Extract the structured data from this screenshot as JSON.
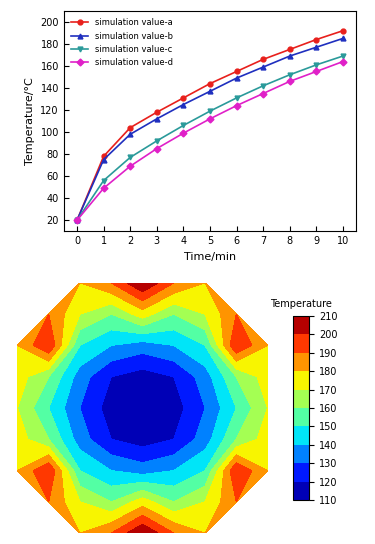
{
  "chart_data": [
    {
      "type": "line",
      "xlabel": "Time/min",
      "ylabel": "Temperature/°C",
      "x": [
        0,
        1,
        2,
        3,
        4,
        5,
        6,
        7,
        8,
        9,
        10
      ],
      "xlim": [
        -0.5,
        10.5
      ],
      "xticks": [
        0,
        1,
        2,
        3,
        4,
        5,
        6,
        7,
        8,
        9,
        10
      ],
      "ylim": [
        10,
        210
      ],
      "yticks": [
        20,
        40,
        60,
        80,
        100,
        120,
        140,
        160,
        180,
        200
      ],
      "legend": "upper left",
      "series": [
        {
          "name": "simulation value-a",
          "color": "#e8201c",
          "marker": "circle",
          "values": [
            20,
            78,
            104,
            118,
            131,
            144,
            155,
            166,
            175,
            184,
            192
          ]
        },
        {
          "name": "simulation value-b",
          "color": "#1f2fbf",
          "marker": "triangle_up",
          "values": [
            20,
            75,
            98,
            112,
            125,
            137,
            149,
            159,
            169,
            177,
            185
          ]
        },
        {
          "name": "simulation value-c",
          "color": "#2a9a9a",
          "marker": "triangle_down",
          "values": [
            20,
            56,
            77,
            92,
            106,
            119,
            131,
            142,
            152,
            161,
            169
          ]
        },
        {
          "name": "simulation value-d",
          "color": "#e020c8",
          "marker": "diamond",
          "values": [
            20,
            49,
            69,
            85,
            99,
            112,
            124,
            135,
            146,
            155,
            164
          ]
        }
      ]
    },
    {
      "type": "heatmap",
      "tick_labels": false,
      "colorbar_label": "Temperature",
      "colorbar_range": [
        110,
        210
      ],
      "colorbar_ticks": [
        110,
        120,
        130,
        140,
        150,
        160,
        170,
        180,
        190,
        200,
        210
      ],
      "cells": [
        [
          null,
          null,
          180,
          190,
          210,
          190,
          180,
          null,
          null
        ],
        [
          null,
          190,
          170,
          160,
          175,
          160,
          170,
          190,
          null
        ],
        [
          180,
          200,
          150,
          140,
          135,
          140,
          150,
          200,
          180
        ],
        [
          175,
          160,
          135,
          120,
          115,
          120,
          135,
          160,
          175
        ],
        [
          170,
          150,
          130,
          115,
          110,
          115,
          130,
          150,
          170
        ],
        [
          175,
          160,
          135,
          120,
          115,
          120,
          135,
          160,
          175
        ],
        [
          180,
          200,
          150,
          140,
          135,
          140,
          150,
          200,
          180
        ],
        [
          null,
          190,
          170,
          160,
          175,
          160,
          170,
          190,
          null
        ],
        [
          null,
          null,
          180,
          190,
          210,
          190,
          180,
          null,
          null
        ]
      ]
    }
  ]
}
